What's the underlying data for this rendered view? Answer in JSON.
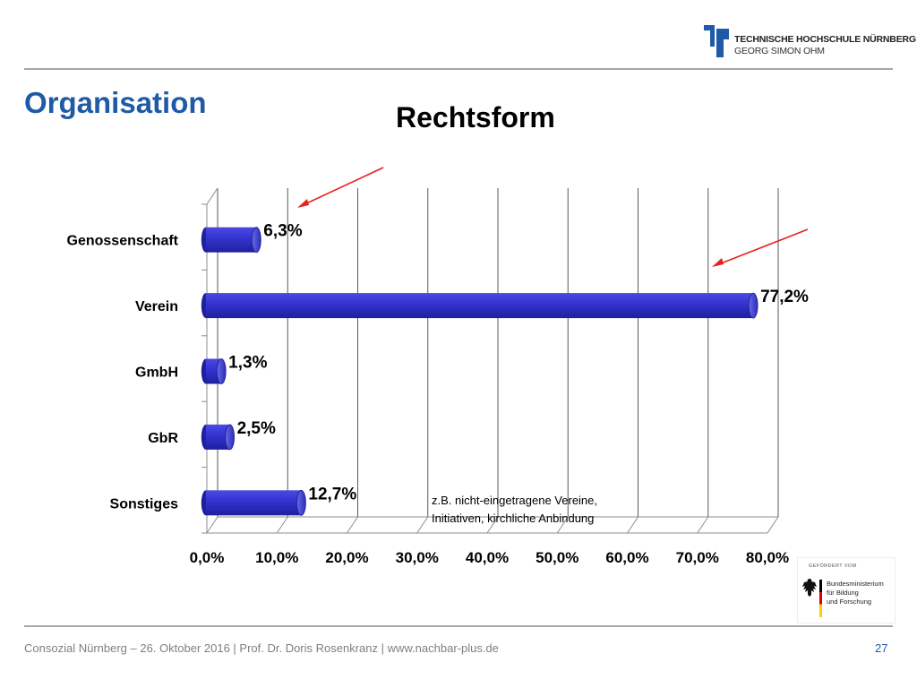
{
  "header": {
    "institution_line1": "TECHNISCHE HOCHSCHULE NÜRNBERG",
    "institution_line2": "GEORG SIMON OHM",
    "page_title": "Organisation"
  },
  "chart_data": {
    "type": "bar",
    "orientation": "horizontal",
    "title": "Rechtsform",
    "categories": [
      "Genossenschaft",
      "Verein",
      "GmbH",
      "GbR",
      "Sonstiges"
    ],
    "values": [
      6.3,
      77.2,
      1.3,
      2.5,
      12.7
    ],
    "value_labels": [
      "6,3%",
      "77,2%",
      "1,3%",
      "2,5%",
      "12,7%"
    ],
    "xlim": [
      0,
      80
    ],
    "xticks": [
      0,
      10,
      20,
      30,
      40,
      50,
      60,
      70,
      80
    ],
    "xtick_labels": [
      "0,0%",
      "10,0%",
      "20,0%",
      "30,0%",
      "40,0%",
      "50,0%",
      "60,0%",
      "70,0%",
      "80,0%"
    ],
    "xlabel": "",
    "ylabel": "",
    "grid": true,
    "bar_color": "#2b2bc6",
    "annotation": {
      "lines": [
        "z.B. nicht-eingetragene Vereine,",
        "Initiativen, kirchliche Anbindung"
      ]
    }
  },
  "sponsor": {
    "label": "GEFÖRDERT VOM",
    "lines": [
      "Bundesministerium",
      "für Bildung",
      "und Forschung"
    ]
  },
  "footer": {
    "text": "Consozial Nürnberg – 26. Oktober 2016 | Prof. Dr. Doris Rosenkranz  | www.nachbar-plus.de",
    "page_number": "27"
  },
  "colors": {
    "title_blue": "#1f5aa6",
    "bar": "#2b2bc6",
    "arrow": "#e8211f",
    "rule": "#a6a6a6"
  }
}
